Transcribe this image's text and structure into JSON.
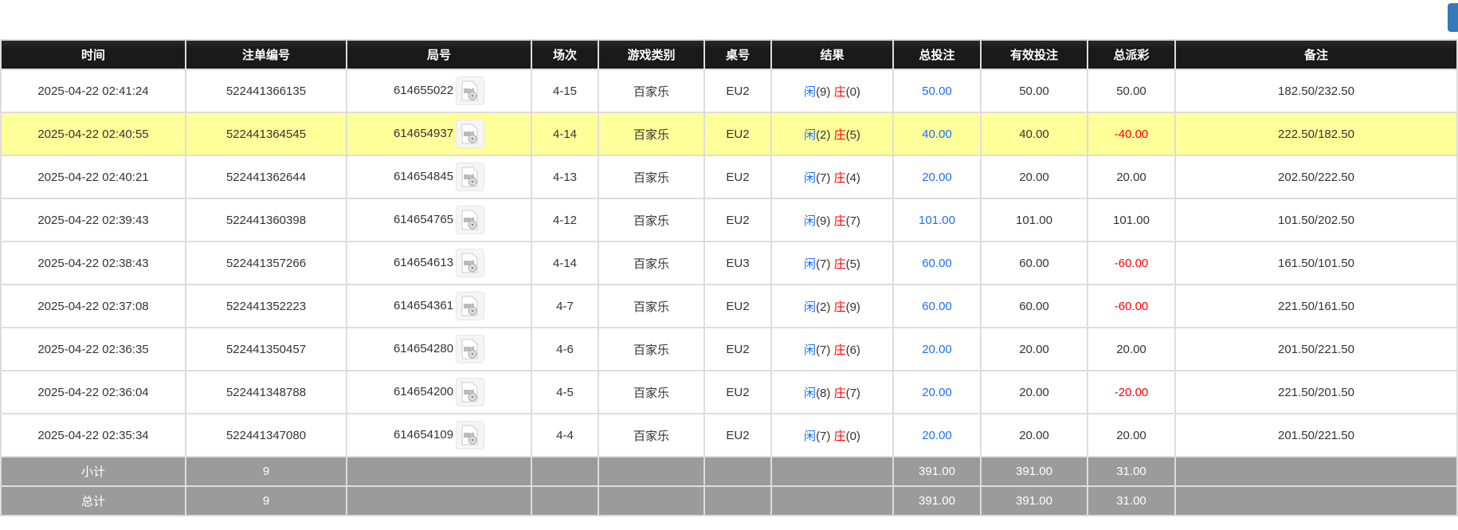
{
  "colors": {
    "accent": "#337ab7",
    "header_bg": "#1a1a1a",
    "highlight": "#ffff99",
    "summary_bg": "#9b9b9b",
    "positive": "#1a6fff",
    "negative": "#ff0000"
  },
  "columns": [
    "时间",
    "注单编号",
    "局号",
    "场次",
    "游戏类别",
    "桌号",
    "结果",
    "总投注",
    "有效投注",
    "总派彩",
    "备注"
  ],
  "rows": [
    {
      "time": "2025-04-22 02:41:24",
      "bet_id": "522441366135",
      "round": "614655022",
      "session": "4-15",
      "game": "百家乐",
      "table": "EU2",
      "player": "闲",
      "player_pts": "(9)",
      "banker": "庄",
      "banker_pts": "(0)",
      "total": "50.00",
      "valid": "50.00",
      "payout": "50.00",
      "payout_neg": false,
      "note": "182.50/232.50",
      "highlight": false
    },
    {
      "time": "2025-04-22 02:40:55",
      "bet_id": "522441364545",
      "round": "614654937",
      "session": "4-14",
      "game": "百家乐",
      "table": "EU2",
      "player": "闲",
      "player_pts": "(2)",
      "banker": "庄",
      "banker_pts": "(5)",
      "total": "40.00",
      "valid": "40.00",
      "payout": "-40.00",
      "payout_neg": true,
      "note": "222.50/182.50",
      "highlight": true
    },
    {
      "time": "2025-04-22 02:40:21",
      "bet_id": "522441362644",
      "round": "614654845",
      "session": "4-13",
      "game": "百家乐",
      "table": "EU2",
      "player": "闲",
      "player_pts": "(7)",
      "banker": "庄",
      "banker_pts": "(4)",
      "total": "20.00",
      "valid": "20.00",
      "payout": "20.00",
      "payout_neg": false,
      "note": "202.50/222.50",
      "highlight": false
    },
    {
      "time": "2025-04-22 02:39:43",
      "bet_id": "522441360398",
      "round": "614654765",
      "session": "4-12",
      "game": "百家乐",
      "table": "EU2",
      "player": "闲",
      "player_pts": "(9)",
      "banker": "庄",
      "banker_pts": "(7)",
      "total": "101.00",
      "valid": "101.00",
      "payout": "101.00",
      "payout_neg": false,
      "note": "101.50/202.50",
      "highlight": false
    },
    {
      "time": "2025-04-22 02:38:43",
      "bet_id": "522441357266",
      "round": "614654613",
      "session": "4-14",
      "game": "百家乐",
      "table": "EU3",
      "player": "闲",
      "player_pts": "(7)",
      "banker": "庄",
      "banker_pts": "(5)",
      "total": "60.00",
      "valid": "60.00",
      "payout": "-60.00",
      "payout_neg": true,
      "note": "161.50/101.50",
      "highlight": false
    },
    {
      "time": "2025-04-22 02:37:08",
      "bet_id": "522441352223",
      "round": "614654361",
      "session": "4-7",
      "game": "百家乐",
      "table": "EU2",
      "player": "闲",
      "player_pts": "(2)",
      "banker": "庄",
      "banker_pts": "(9)",
      "total": "60.00",
      "valid": "60.00",
      "payout": "-60.00",
      "payout_neg": true,
      "note": "221.50/161.50",
      "highlight": false
    },
    {
      "time": "2025-04-22 02:36:35",
      "bet_id": "522441350457",
      "round": "614654280",
      "session": "4-6",
      "game": "百家乐",
      "table": "EU2",
      "player": "闲",
      "player_pts": "(7)",
      "banker": "庄",
      "banker_pts": "(6)",
      "total": "20.00",
      "valid": "20.00",
      "payout": "20.00",
      "payout_neg": false,
      "note": "201.50/221.50",
      "highlight": false
    },
    {
      "time": "2025-04-22 02:36:04",
      "bet_id": "522441348788",
      "round": "614654200",
      "session": "4-5",
      "game": "百家乐",
      "table": "EU2",
      "player": "闲",
      "player_pts": "(8)",
      "banker": "庄",
      "banker_pts": "(7)",
      "total": "20.00",
      "valid": "20.00",
      "payout": "-20.00",
      "payout_neg": true,
      "note": "221.50/201.50",
      "highlight": false
    },
    {
      "time": "2025-04-22 02:35:34",
      "bet_id": "522441347080",
      "round": "614654109",
      "session": "4-4",
      "game": "百家乐",
      "table": "EU2",
      "player": "闲",
      "player_pts": "(7)",
      "banker": "庄",
      "banker_pts": "(0)",
      "total": "20.00",
      "valid": "20.00",
      "payout": "20.00",
      "payout_neg": false,
      "note": "201.50/221.50",
      "highlight": false
    }
  ],
  "summary": [
    {
      "label": "小计",
      "count": "9",
      "total": "391.00",
      "valid": "391.00",
      "payout": "31.00"
    },
    {
      "label": "总计",
      "count": "9",
      "total": "391.00",
      "valid": "391.00",
      "payout": "31.00"
    }
  ],
  "icons": {
    "replay": "video-replay-icon"
  }
}
